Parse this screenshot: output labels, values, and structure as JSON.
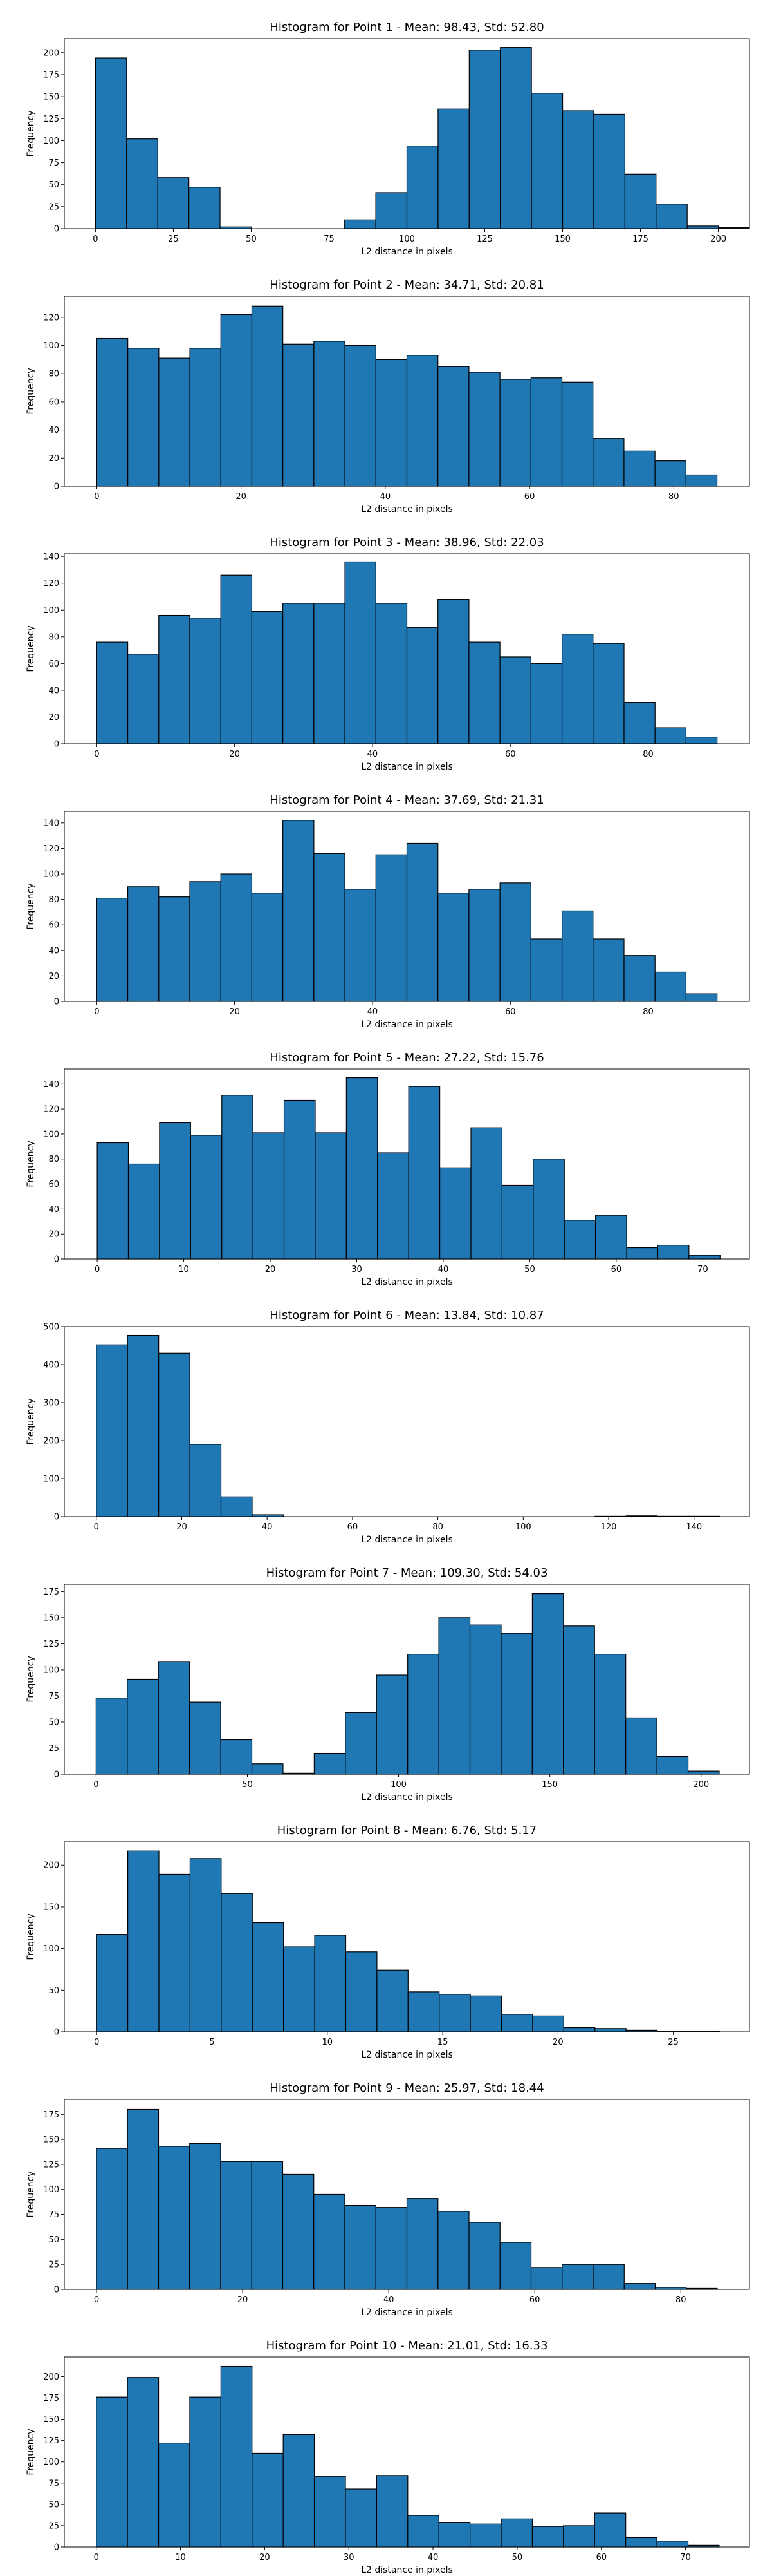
{
  "chart_data": [
    {
      "type": "bar",
      "title": "Histogram for Point 1 - Mean: 98.43, Std: 52.80",
      "xlabel": "L2 distance in pixels",
      "ylabel": "Frequency",
      "bins_start": 0,
      "bin_width": 10,
      "xlim": [
        -10,
        210
      ],
      "ylim": [
        0,
        216
      ],
      "xticks": [
        0,
        25,
        50,
        75,
        100,
        125,
        150,
        175,
        200
      ],
      "yticks": [
        0,
        25,
        50,
        75,
        100,
        125,
        150,
        175,
        200
      ],
      "values": [
        194,
        102,
        58,
        47,
        2,
        0,
        0,
        0,
        10,
        41,
        94,
        136,
        203,
        206,
        154,
        134,
        130,
        62,
        28,
        3,
        1
      ]
    },
    {
      "type": "bar",
      "title": "Histogram for Point 2 - Mean: 34.71, Std: 20.81",
      "xlabel": "L2 distance in pixels",
      "ylabel": "Frequency",
      "bins_start": 0,
      "bin_width": 4.3,
      "xlim": [
        -4.5,
        90.5
      ],
      "ylim": [
        0,
        135
      ],
      "xticks": [
        0,
        20,
        40,
        60,
        80
      ],
      "yticks": [
        0,
        20,
        40,
        60,
        80,
        100,
        120
      ],
      "values": [
        105,
        98,
        91,
        98,
        122,
        128,
        101,
        103,
        100,
        90,
        93,
        85,
        81,
        76,
        77,
        74,
        34,
        25,
        18,
        8
      ]
    },
    {
      "type": "bar",
      "title": "Histogram for Point 3 - Mean: 38.96, Std: 22.03",
      "xlabel": "L2 distance in pixels",
      "ylabel": "Frequency",
      "bins_start": 0,
      "bin_width": 4.5,
      "xlim": [
        -4.7,
        94.7
      ],
      "ylim": [
        0,
        142
      ],
      "xticks": [
        0,
        20,
        40,
        60,
        80
      ],
      "yticks": [
        0,
        20,
        40,
        60,
        80,
        100,
        120,
        140
      ],
      "values": [
        76,
        67,
        96,
        94,
        126,
        99,
        105,
        105,
        136,
        105,
        87,
        108,
        76,
        65,
        60,
        82,
        75,
        31,
        12,
        5
      ]
    },
    {
      "type": "bar",
      "title": "Histogram for Point 4 - Mean: 37.69, Std: 21.31",
      "xlabel": "L2 distance in pixels",
      "ylabel": "Frequency",
      "bins_start": 0,
      "bin_width": 4.5,
      "xlim": [
        -4.7,
        94.7
      ],
      "ylim": [
        0,
        149
      ],
      "xticks": [
        0,
        20,
        40,
        60,
        80
      ],
      "yticks": [
        0,
        20,
        40,
        60,
        80,
        100,
        120,
        140
      ],
      "values": [
        81,
        90,
        82,
        94,
        100,
        85,
        142,
        116,
        88,
        115,
        124,
        85,
        88,
        93,
        49,
        71,
        49,
        36,
        23,
        6
      ]
    },
    {
      "type": "bar",
      "title": "Histogram for Point 5 - Mean: 27.22, Std: 15.76",
      "xlabel": "L2 distance in pixels",
      "ylabel": "Frequency",
      "bins_start": 0,
      "bin_width": 3.6,
      "xlim": [
        -3.8,
        75.4
      ],
      "ylim": [
        0,
        152
      ],
      "xticks": [
        0,
        10,
        20,
        30,
        40,
        50,
        60,
        70
      ],
      "yticks": [
        0,
        20,
        40,
        60,
        80,
        100,
        120,
        140
      ],
      "values": [
        93,
        76,
        109,
        99,
        131,
        101,
        127,
        101,
        145,
        85,
        138,
        73,
        105,
        59,
        80,
        31,
        35,
        9,
        11,
        3
      ]
    },
    {
      "type": "bar",
      "title": "Histogram for Point 6 - Mean: 13.84, Std: 10.87",
      "xlabel": "L2 distance in pixels",
      "ylabel": "Frequency",
      "bins_start": 0,
      "bin_width": 7.3,
      "xlim": [
        -7.5,
        153
      ],
      "ylim": [
        0,
        500
      ],
      "xticks": [
        0,
        20,
        40,
        60,
        80,
        100,
        120,
        140
      ],
      "yticks": [
        0,
        100,
        200,
        300,
        400,
        500
      ],
      "values": [
        452,
        477,
        430,
        190,
        52,
        5,
        0,
        0,
        0,
        0,
        0,
        0,
        0,
        0,
        0,
        0,
        1,
        2,
        1,
        1
      ]
    },
    {
      "type": "bar",
      "title": "Histogram for Point 7 - Mean: 109.30, Std: 54.03",
      "xlabel": "L2 distance in pixels",
      "ylabel": "Frequency",
      "bins_start": 0,
      "bin_width": 10.3,
      "xlim": [
        -10.5,
        216
      ],
      "ylim": [
        0,
        182
      ],
      "xticks": [
        0,
        50,
        100,
        150,
        200
      ],
      "yticks": [
        0,
        25,
        50,
        75,
        100,
        125,
        150,
        175
      ],
      "values": [
        73,
        91,
        108,
        69,
        33,
        10,
        1,
        20,
        59,
        95,
        115,
        150,
        143,
        135,
        173,
        142,
        115,
        54,
        17,
        3
      ]
    },
    {
      "type": "bar",
      "title": "Histogram for Point 8 - Mean: 6.76, Std: 5.17",
      "xlabel": "L2 distance in pixels",
      "ylabel": "Frequency",
      "bins_start": 0,
      "bin_width": 1.35,
      "xlim": [
        -1.4,
        28.3
      ],
      "ylim": [
        0,
        228
      ],
      "xticks": [
        0,
        5,
        10,
        15,
        20,
        25
      ],
      "yticks": [
        0,
        50,
        100,
        150,
        200
      ],
      "values": [
        117,
        217,
        189,
        208,
        166,
        131,
        102,
        116,
        96,
        74,
        48,
        45,
        43,
        21,
        19,
        5,
        4,
        2,
        1,
        1
      ]
    },
    {
      "type": "bar",
      "title": "Histogram for Point 9 - Mean: 25.97, Std: 18.44",
      "xlabel": "L2 distance in pixels",
      "ylabel": "Frequency",
      "bins_start": 0,
      "bin_width": 4.25,
      "xlim": [
        -4.4,
        89.4
      ],
      "ylim": [
        0,
        190
      ],
      "xticks": [
        0,
        20,
        40,
        60,
        80
      ],
      "yticks": [
        0,
        25,
        50,
        75,
        100,
        125,
        150,
        175
      ],
      "values": [
        141,
        180,
        143,
        146,
        128,
        128,
        115,
        95,
        84,
        82,
        91,
        78,
        67,
        47,
        22,
        25,
        25,
        6,
        2,
        1
      ]
    },
    {
      "type": "bar",
      "title": "Histogram for Point 10 - Mean: 21.01, Std: 16.33",
      "xlabel": "L2 distance in pixels",
      "ylabel": "Frequency",
      "bins_start": 0,
      "bin_width": 3.7,
      "xlim": [
        -3.8,
        77.6
      ],
      "ylim": [
        0,
        223
      ],
      "xticks": [
        0,
        10,
        20,
        30,
        40,
        50,
        60,
        70
      ],
      "yticks": [
        0,
        25,
        50,
        75,
        100,
        125,
        150,
        175,
        200
      ],
      "values": [
        176,
        199,
        122,
        176,
        212,
        110,
        132,
        83,
        68,
        84,
        37,
        29,
        27,
        33,
        24,
        25,
        40,
        11,
        7,
        2
      ]
    }
  ]
}
